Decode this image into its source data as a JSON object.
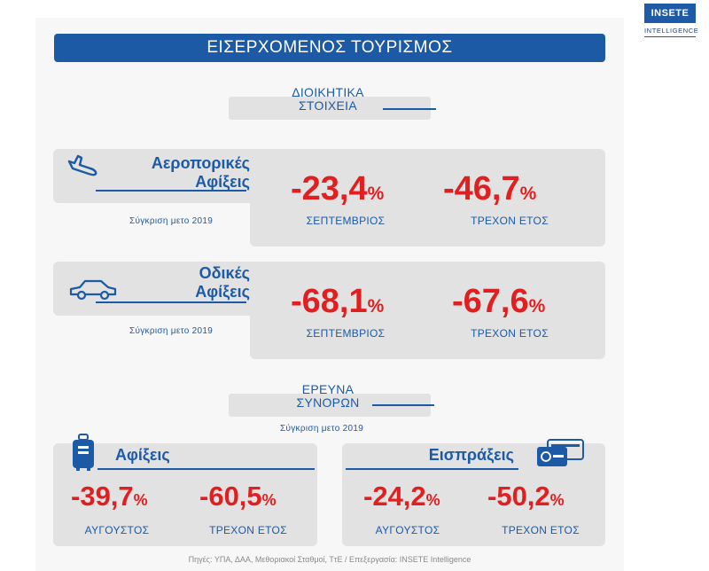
{
  "logo": {
    "brand": "INSETE",
    "sub": "INTELLIGENCE"
  },
  "title": "ΕΙΣΕΡΧΟΜΕΝΟΣ ΤΟΥΡΙΣΜΟΣ",
  "admin_section": {
    "line1": "ΔΙΟΙΚΗΤΙΚΑ",
    "line2": "ΣΤΟΙΧΕΙΑ"
  },
  "air": {
    "title1": "Αεροπορικές",
    "title2": "Αφίξεις",
    "compare": "Σύγκριση μετο 2019",
    "m1": {
      "value": "-23,4",
      "unit": "%",
      "label": "ΣΕΠΤΕΜΒΡΙΟΣ"
    },
    "m2": {
      "value": "-46,7",
      "unit": "%",
      "label": "ΤΡΕΧΟΝ ΕΤΟΣ"
    },
    "icon": "airplane-landing-icon"
  },
  "road": {
    "title1": "Οδικές",
    "title2": "Αφίξεις",
    "compare": "Σύγκριση μετο 2019",
    "m1": {
      "value": "-68,1",
      "unit": "%",
      "label": "ΣΕΠΤΕΜΒΡΙΟΣ"
    },
    "m2": {
      "value": "-67,6",
      "unit": "%",
      "label": "ΤΡΕΧΟΝ ΕΤΟΣ"
    },
    "icon": "car-icon"
  },
  "survey_section": {
    "line1": "ΕΡΕΥΝΑ",
    "line2": "ΣΥΝΟΡΩΝ",
    "compare": "Σύγκριση μετο 2019"
  },
  "arrivals": {
    "title": "Αφίξεις",
    "icon": "suitcase-icon",
    "m1": {
      "value": "-39,7",
      "unit": "%",
      "label": "ΑΥΓΟΥΣΤΟΣ"
    },
    "m2": {
      "value": "-60,5",
      "unit": "%",
      "label": "ΤΡΕΧΟΝ ΕΤΟΣ"
    }
  },
  "receipts": {
    "title": "Εισπράξεις",
    "icon": "credit-card-icon",
    "m1": {
      "value": "-24,2",
      "unit": "%",
      "label": "ΑΥΓΟΥΣΤΟΣ"
    },
    "m2": {
      "value": "-50,2",
      "unit": "%",
      "label": "ΤΡΕΧΟΝ ΕΤΟΣ"
    }
  },
  "source": "Πηγές: ΥΠΑ, ΔΑΑ, Μεθοριακοί Σταθμοί, ΤτΕ / Επεξεργασία: INSETE Intelligence",
  "colors": {
    "accent": "#1c5aa5",
    "negative": "#e02020",
    "box": "#e2e2e2"
  }
}
